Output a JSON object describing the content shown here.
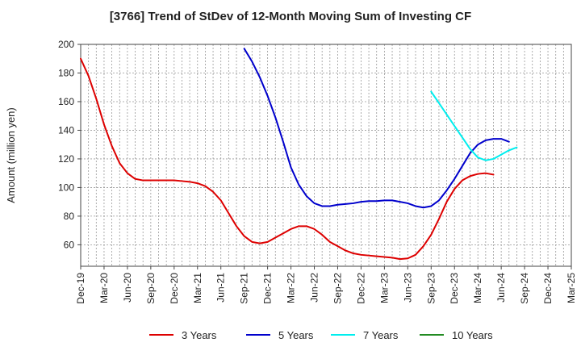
{
  "chart_data": {
    "type": "line",
    "title": "[3766]  Trend of StDev of 12-Month Moving Sum of Investing CF",
    "ylabel": "Amount (million yen)",
    "xlabel": "",
    "ylim": [
      45,
      200
    ],
    "yticks": [
      60,
      80,
      100,
      120,
      140,
      160,
      180,
      200
    ],
    "x_tick_labels": [
      "Dec-19",
      "Mar-20",
      "Jun-20",
      "Sep-20",
      "Dec-20",
      "Mar-21",
      "Jun-21",
      "Sep-21",
      "Dec-21",
      "Mar-22",
      "Jun-22",
      "Sep-22",
      "Dec-22",
      "Mar-23",
      "Jun-23",
      "Sep-23",
      "Dec-23",
      "Mar-24",
      "Jun-24",
      "Sep-24",
      "Dec-24",
      "Mar-25"
    ],
    "grid": true,
    "legend_position": "bottom",
    "series": [
      {
        "name": "3 Years",
        "color": "#dd0000",
        "start_month": "Dec-19",
        "values": [
          190,
          178,
          162,
          144,
          129,
          117,
          110,
          106,
          105,
          105,
          105,
          105,
          105,
          104.5,
          104,
          103,
          101,
          97,
          91,
          82,
          73,
          66,
          62,
          61,
          62,
          65,
          68,
          71,
          73,
          73,
          71,
          67,
          62,
          59,
          56,
          54,
          53,
          52.5,
          52,
          51.5,
          51,
          50,
          50.5,
          53,
          59,
          67,
          78,
          90,
          99,
          105,
          108,
          109.5,
          110,
          109
        ]
      },
      {
        "name": "5 Years",
        "color": "#0000cc",
        "start_month": "Sep-21",
        "values": [
          197,
          188,
          177,
          164,
          149,
          132,
          114,
          102,
          94,
          89,
          87,
          87,
          88,
          88.5,
          89,
          90,
          90.5,
          90.5,
          91,
          91,
          90,
          89,
          87,
          86,
          87,
          91,
          98,
          106,
          115,
          124,
          130,
          133,
          134,
          134,
          132
        ]
      },
      {
        "name": "7 Years",
        "color": "#00eeee",
        "start_month": "Sep-23",
        "values": [
          167,
          159,
          151,
          143,
          135,
          127,
          121,
          119,
          120,
          123,
          126,
          128
        ]
      },
      {
        "name": "10 Years",
        "color": "#228b22",
        "start_month": "",
        "values": []
      }
    ]
  }
}
